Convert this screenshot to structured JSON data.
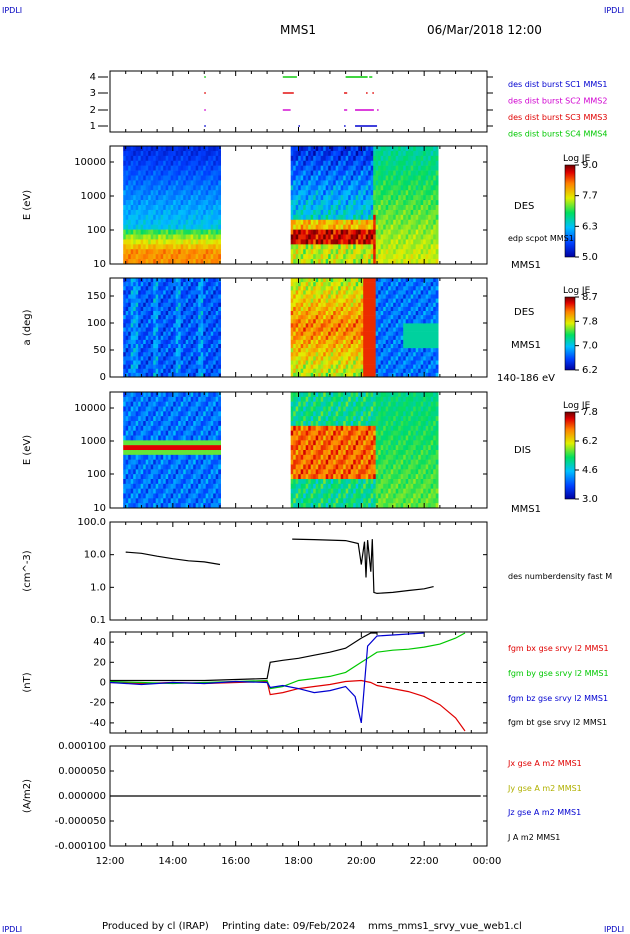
{
  "header": {
    "corner_left_top": "IPDLI",
    "corner_right_top": "IPDLI",
    "corner_left_bottom": "IPDLI",
    "corner_right_bottom": "IPDLI",
    "spacecraft": "MMS1",
    "datetime": "06/Mar/2018 12:00"
  },
  "footer": {
    "produced_by": "Produced by cl (IRAP)",
    "printing_date": "Printing date: 09/Feb/2024",
    "file": "mms_mms1_srvy_vue_web1.cl"
  },
  "colors": {
    "red": "#e00000",
    "green": "#00c800",
    "blue": "#0000d0",
    "magenta": "#d000d0",
    "black": "#000000"
  },
  "chart_data": [
    {
      "type": "scatter",
      "id": "burst",
      "yticks": [
        "1",
        "2",
        "3",
        "4"
      ],
      "legend": [
        {
          "name": "des dist burst SC1 MMS1",
          "color": "#0000d0"
        },
        {
          "name": "des dist burst SC2 MMS2",
          "color": "#d000d0"
        },
        {
          "name": "des dist burst SC3 MMS3",
          "color": "#e00000"
        },
        {
          "name": "des dist burst SC4 MMS4",
          "color": "#00c800"
        }
      ],
      "segments": [
        {
          "sc": 4,
          "x": [
            [
              15.0,
              15.05
            ],
            [
              17.5,
              17.95
            ],
            [
              19.5,
              20.2
            ],
            [
              20.25,
              20.35
            ]
          ]
        },
        {
          "sc": 3,
          "x": [
            [
              15.0,
              15.05
            ],
            [
              17.5,
              17.85
            ],
            [
              19.45,
              19.55
            ],
            [
              20.15,
              20.2
            ],
            [
              20.35,
              20.4
            ]
          ]
        },
        {
          "sc": 2,
          "x": [
            [
              15.0,
              15.05
            ],
            [
              17.5,
              17.75
            ],
            [
              19.45,
              19.55
            ],
            [
              19.8,
              20.4
            ],
            [
              20.5,
              20.55
            ]
          ]
        },
        {
          "sc": 1,
          "x": [
            [
              15.0,
              15.05
            ],
            [
              18.0,
              18.03
            ],
            [
              19.45,
              19.5
            ],
            [
              19.8,
              20.5
            ]
          ]
        }
      ]
    },
    {
      "type": "heatmap",
      "id": "des_energy",
      "ylabel": "E (eV)",
      "yscale": "log",
      "yticks": [
        "10",
        "100",
        "1000",
        "10000"
      ],
      "instrument": "DES",
      "sc_label": "MMS1",
      "overlay": "edp scpot MMS1",
      "colorbar": {
        "title": "Log JE",
        "ticks": [
          "5.0",
          "6.3",
          "7.7",
          "9.0"
        ]
      }
    },
    {
      "type": "heatmap",
      "id": "des_pitch",
      "ylabel": "a (deg)",
      "yticks": [
        "0",
        "50",
        "100",
        "150"
      ],
      "instrument": "DES",
      "sc_label": "MMS1",
      "energy_range": "140-186 eV",
      "colorbar": {
        "title": "Log JE",
        "ticks": [
          "6.2",
          "7.0",
          "7.8",
          "8.7"
        ]
      }
    },
    {
      "type": "heatmap",
      "id": "dis_energy",
      "ylabel": "E (eV)",
      "yscale": "log",
      "yticks": [
        "10",
        "100",
        "1000",
        "10000"
      ],
      "instrument": "DIS",
      "sc_label": "MMS1",
      "colorbar": {
        "title": "Log JE",
        "ticks": [
          "3.0",
          "4.6",
          "6.2",
          "7.8"
        ]
      }
    },
    {
      "type": "line",
      "id": "density",
      "ylabel": "(cm^-3)",
      "yscale": "log",
      "yticks": [
        "0.1",
        "1.0",
        "10.0",
        "100.0"
      ],
      "series": [
        {
          "name": "des numberdensity fast M",
          "color": "#000000",
          "x": [
            12.5,
            13.0,
            13.5,
            14.0,
            14.5,
            15.0,
            15.5,
            17.8,
            18.5,
            19.0,
            19.5,
            19.9,
            20.0,
            20.1,
            20.15,
            20.2,
            20.3,
            20.35,
            20.4,
            20.5,
            21.0,
            21.5,
            22.0,
            22.3
          ],
          "y": [
            12,
            11,
            9,
            7.5,
            6.5,
            6,
            5,
            30,
            29,
            28,
            27,
            22,
            5,
            25,
            2,
            28,
            3,
            30,
            0.7,
            0.65,
            0.7,
            0.8,
            0.9,
            1.05
          ]
        }
      ]
    },
    {
      "type": "line",
      "id": "fgm",
      "ylabel": "(nT)",
      "ylim": [
        -50,
        50
      ],
      "yticks": [
        "-40",
        "-20",
        "0",
        "20",
        "40"
      ],
      "series": [
        {
          "name": "fgm bx gse srvy l2 MMS1",
          "color": "#e00000",
          "x": [
            12.0,
            13.0,
            14.0,
            15.0,
            16.0,
            17.0,
            17.1,
            17.5,
            18.0,
            18.5,
            19.0,
            19.5,
            20.0,
            20.3,
            20.5,
            21.0,
            21.5,
            22.0,
            22.5,
            23.0,
            23.3
          ],
          "y": [
            0,
            -1,
            0,
            -1,
            0,
            1,
            -12,
            -10,
            -6,
            -4,
            -2,
            1,
            2,
            0,
            -3,
            -6,
            -9,
            -14,
            -22,
            -35,
            -48
          ]
        },
        {
          "name": "fgm by gse srvy l2 MMS1",
          "color": "#00c800",
          "x": [
            12.0,
            13.0,
            14.0,
            15.0,
            16.0,
            17.0,
            17.1,
            17.5,
            18.0,
            18.5,
            19.0,
            19.5,
            20.0,
            20.3,
            20.5,
            21.0,
            21.5,
            22.0,
            22.5,
            23.0,
            23.3
          ],
          "y": [
            1,
            0,
            -1,
            0,
            1,
            2,
            -6,
            -4,
            2,
            4,
            6,
            10,
            20,
            26,
            30,
            32,
            33,
            35,
            38,
            44,
            49
          ]
        },
        {
          "name": "fgm bz gse srvy l2 MMS1",
          "color": "#0000d0",
          "x": [
            12.0,
            13.0,
            14.0,
            15.0,
            16.0,
            17.0,
            17.1,
            17.5,
            18.0,
            18.5,
            19.0,
            19.5,
            19.8,
            20.0,
            20.2,
            20.5,
            21.0,
            21.5,
            22.0
          ],
          "y": [
            0,
            -2,
            0,
            -1,
            1,
            0,
            -5,
            -3,
            -6,
            -10,
            -8,
            -4,
            -14,
            -40,
            36,
            46,
            47,
            48,
            49
          ]
        },
        {
          "name": "fgm bt gse srvy l2 MMS1",
          "color": "#000000",
          "x": [
            12.0,
            13.0,
            14.0,
            15.0,
            16.0,
            17.0,
            17.1,
            17.5,
            18.0,
            18.5,
            19.0,
            19.5,
            20.0,
            20.3,
            20.5
          ],
          "y": [
            2,
            2,
            2,
            2,
            3,
            4,
            20,
            22,
            24,
            27,
            30,
            34,
            44,
            49,
            49
          ]
        }
      ]
    },
    {
      "type": "line",
      "id": "current",
      "ylabel": "(A/m2)",
      "ylim": [
        -0.0001,
        0.0001
      ],
      "yticks": [
        "0.000100",
        "0.000050",
        "0.000000",
        "-0.000050",
        "-0.000100"
      ],
      "xticks": [
        "12:00",
        "14:00",
        "16:00",
        "18:00",
        "20:00",
        "22:00",
        "00:00"
      ],
      "series": [
        {
          "name": "Jx gse A m2 MMS1",
          "color": "#e00000"
        },
        {
          "name": "Jy gse A m2 MMS1",
          "color": "#b0b000"
        },
        {
          "name": "Jz gse A m2 MMS1",
          "color": "#0000d0"
        },
        {
          "name": "J A m2 MMS1",
          "color": "#000000"
        }
      ]
    }
  ]
}
